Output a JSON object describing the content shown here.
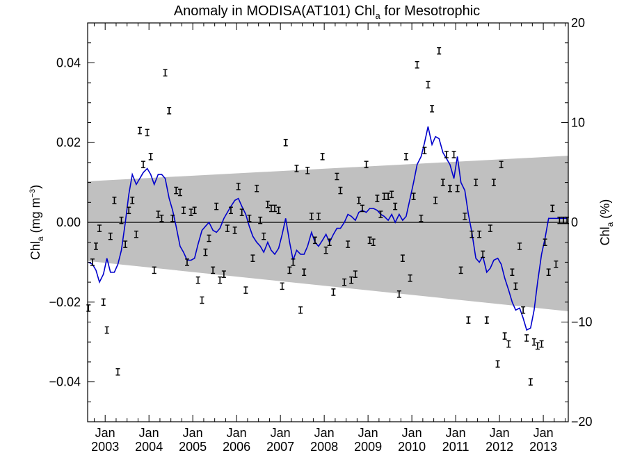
{
  "chart_data": {
    "type": "line",
    "title_main": "Anomaly in MODISA(AT101) Chl",
    "title_sub": "a",
    "title_tail": " for Mesotrophic",
    "ylabel_left": {
      "main": "Chl",
      "sub": "a",
      "unit_pre": " (mg m",
      "unit_sup": "−3",
      "unit_post": ")"
    },
    "ylabel_right": {
      "main": "Chl",
      "sub": "a",
      "tail": " (%)"
    },
    "x_range": [
      2002.6,
      2013.57
    ],
    "y_left_range": [
      -0.05,
      0.05
    ],
    "y_right_range": [
      -20,
      20
    ],
    "x_ticks": [
      {
        "x": 2003.0,
        "line1": "Jan",
        "line2": "2003"
      },
      {
        "x": 2004.0,
        "line1": "Jan",
        "line2": "2004"
      },
      {
        "x": 2005.0,
        "line1": "Jan",
        "line2": "2005"
      },
      {
        "x": 2006.0,
        "line1": "Jan",
        "line2": "2006"
      },
      {
        "x": 2007.0,
        "line1": "Jan",
        "line2": "2007"
      },
      {
        "x": 2008.0,
        "line1": "Jan",
        "line2": "2008"
      },
      {
        "x": 2009.0,
        "line1": "Jan",
        "line2": "2009"
      },
      {
        "x": 2010.0,
        "line1": "Jan",
        "line2": "2010"
      },
      {
        "x": 2011.0,
        "line1": "Jan",
        "line2": "2011"
      },
      {
        "x": 2012.0,
        "line1": "Jan",
        "line2": "2012"
      },
      {
        "x": 2013.0,
        "line1": "Jan",
        "line2": "2013"
      }
    ],
    "y_left_ticks": [
      {
        "v": -0.04,
        "label": "−0.04"
      },
      {
        "v": -0.02,
        "label": "−0.02"
      },
      {
        "v": 0.0,
        "label": "0.00"
      },
      {
        "v": 0.02,
        "label": "0.02"
      },
      {
        "v": 0.04,
        "label": "0.04"
      }
    ],
    "y_right_ticks": [
      {
        "v": -20,
        "label": "−20"
      },
      {
        "v": -10,
        "label": "−10"
      },
      {
        "v": 0,
        "label": "0"
      },
      {
        "v": 10,
        "label": "10"
      },
      {
        "v": 20,
        "label": "20"
      }
    ],
    "grey_band": {
      "x": [
        2002.6,
        2013.57
      ],
      "upper": [
        0.0103,
        0.0167
      ],
      "lower": [
        -0.0097,
        -0.0223
      ],
      "color": "#c0c0c0"
    },
    "zero_line": 0.0,
    "series": [
      {
        "kind": "monthly_anomaly_points",
        "color": "#000000",
        "x": [
          2002.62,
          2002.71,
          2002.79,
          2002.87,
          2002.96,
          2003.04,
          2003.12,
          2003.21,
          2003.29,
          2003.37,
          2003.46,
          2003.54,
          2003.62,
          2003.71,
          2003.79,
          2003.87,
          2003.96,
          2004.04,
          2004.12,
          2004.21,
          2004.29,
          2004.37,
          2004.46,
          2004.54,
          2004.62,
          2004.71,
          2004.79,
          2004.87,
          2004.96,
          2005.04,
          2005.12,
          2005.21,
          2005.29,
          2005.37,
          2005.46,
          2005.54,
          2005.62,
          2005.71,
          2005.79,
          2005.87,
          2005.96,
          2006.04,
          2006.12,
          2006.21,
          2006.29,
          2006.37,
          2006.46,
          2006.54,
          2006.62,
          2006.71,
          2006.79,
          2006.87,
          2006.96,
          2007.04,
          2007.12,
          2007.21,
          2007.29,
          2007.37,
          2007.46,
          2007.54,
          2007.62,
          2007.71,
          2007.79,
          2007.87,
          2007.96,
          2008.04,
          2008.12,
          2008.21,
          2008.29,
          2008.37,
          2008.46,
          2008.54,
          2008.62,
          2008.71,
          2008.79,
          2008.87,
          2008.96,
          2009.04,
          2009.12,
          2009.21,
          2009.29,
          2009.37,
          2009.46,
          2009.54,
          2009.62,
          2009.71,
          2009.79,
          2009.87,
          2009.96,
          2010.04,
          2010.12,
          2010.21,
          2010.29,
          2010.37,
          2010.46,
          2010.54,
          2010.62,
          2010.71,
          2010.79,
          2010.87,
          2010.96,
          2011.04,
          2011.12,
          2011.21,
          2011.29,
          2011.37,
          2011.46,
          2011.54,
          2011.62,
          2011.71,
          2011.79,
          2011.87,
          2011.96,
          2012.04,
          2012.12,
          2012.21,
          2012.29,
          2012.37,
          2012.46,
          2012.54,
          2012.62,
          2012.71,
          2012.79,
          2012.87,
          2012.96,
          2013.04,
          2013.12,
          2013.21,
          2013.29,
          2013.37,
          2013.46,
          2013.54
        ],
        "y": [
          -0.0215,
          -0.01,
          -0.006,
          -0.0015,
          -0.02,
          -0.027,
          -0.0035,
          0.0055,
          -0.0375,
          0.0005,
          -0.0055,
          0.003,
          0.0055,
          -0.003,
          0.023,
          0.0145,
          0.0225,
          0.0165,
          -0.012,
          0.002,
          0.001,
          0.0375,
          0.028,
          0.001,
          0.008,
          0.0075,
          0.003,
          -0.01,
          0.0025,
          0.003,
          -0.0145,
          -0.0195,
          -0.0075,
          -0.004,
          -0.012,
          0.004,
          -0.0145,
          -0.013,
          -0.0015,
          0.003,
          -0.002,
          0.009,
          0.0025,
          -0.017,
          0.001,
          -0.009,
          0.0085,
          0.0005,
          -0.0035,
          0.0045,
          0.0035,
          0.0035,
          0.003,
          -0.016,
          0.02,
          -0.012,
          -0.01,
          0.0135,
          -0.022,
          -0.0125,
          0.013,
          0.0015,
          -0.0045,
          0.0015,
          0.0165,
          -0.007,
          -0.005,
          -0.0175,
          0.0115,
          0.008,
          -0.015,
          -0.0055,
          -0.0145,
          -0.013,
          0.0055,
          0.0035,
          0.0145,
          -0.0045,
          -0.005,
          0.006,
          0.002,
          0.0065,
          0.0065,
          0.007,
          0.004,
          -0.018,
          -0.009,
          0.0165,
          -0.014,
          0.0065,
          0.0395,
          0.001,
          0.018,
          0.0345,
          0.0285,
          0.0055,
          0.043,
          0.01,
          0.017,
          0.0085,
          0.017,
          0.0085,
          -0.012,
          0.0015,
          -0.0245,
          -0.003,
          0.01,
          -0.003,
          -0.008,
          -0.0245,
          -0.0015,
          0.01,
          -0.0355,
          0.0145,
          -0.0285,
          -0.0305,
          -0.0125,
          -0.016,
          -0.006,
          -0.022,
          -0.029,
          -0.04,
          -0.03,
          -0.031,
          -0.0305,
          -0.005,
          -0.0125,
          0.0035,
          -0.0105,
          0.0005,
          0.0005,
          0.0005
        ],
        "err": 0.0008
      },
      {
        "kind": "smoothed_line",
        "color": "#0000cc",
        "x": [
          2002.62,
          2002.71,
          2002.79,
          2002.87,
          2002.96,
          2003.04,
          2003.12,
          2003.21,
          2003.29,
          2003.37,
          2003.46,
          2003.54,
          2003.62,
          2003.71,
          2003.79,
          2003.87,
          2003.96,
          2004.04,
          2004.12,
          2004.21,
          2004.29,
          2004.37,
          2004.46,
          2004.54,
          2004.62,
          2004.71,
          2004.79,
          2004.87,
          2004.96,
          2005.04,
          2005.12,
          2005.21,
          2005.29,
          2005.37,
          2005.46,
          2005.54,
          2005.62,
          2005.71,
          2005.79,
          2005.87,
          2005.96,
          2006.04,
          2006.12,
          2006.21,
          2006.29,
          2006.37,
          2006.46,
          2006.54,
          2006.62,
          2006.71,
          2006.79,
          2006.87,
          2006.96,
          2007.04,
          2007.12,
          2007.21,
          2007.29,
          2007.37,
          2007.46,
          2007.54,
          2007.62,
          2007.71,
          2007.79,
          2007.87,
          2007.96,
          2008.04,
          2008.12,
          2008.21,
          2008.29,
          2008.37,
          2008.46,
          2008.54,
          2008.62,
          2008.71,
          2008.79,
          2008.87,
          2008.96,
          2009.04,
          2009.12,
          2009.21,
          2009.29,
          2009.37,
          2009.46,
          2009.54,
          2009.62,
          2009.71,
          2009.79,
          2009.87,
          2009.96,
          2010.04,
          2010.12,
          2010.21,
          2010.29,
          2010.37,
          2010.46,
          2010.54,
          2010.62,
          2010.71,
          2010.79,
          2010.87,
          2010.96,
          2011.04,
          2011.12,
          2011.21,
          2011.29,
          2011.37,
          2011.46,
          2011.54,
          2011.62,
          2011.71,
          2011.79,
          2011.87,
          2011.96,
          2012.04,
          2012.12,
          2012.21,
          2012.29,
          2012.37,
          2012.46,
          2012.54,
          2012.62,
          2012.71,
          2012.79,
          2012.87,
          2012.96,
          2013.04,
          2013.12,
          2013.21,
          2013.29,
          2013.37,
          2013.46,
          2013.54
        ],
        "y": [
          -0.01,
          -0.0105,
          -0.012,
          -0.015,
          -0.013,
          -0.009,
          -0.0125,
          -0.0125,
          -0.0105,
          -0.007,
          0.0,
          0.007,
          0.012,
          0.0095,
          0.011,
          0.0125,
          0.0135,
          0.012,
          0.0095,
          0.012,
          0.012,
          0.011,
          0.006,
          0.003,
          -0.001,
          -0.006,
          -0.0075,
          -0.0095,
          -0.0095,
          -0.009,
          -0.0055,
          -0.002,
          -0.001,
          0.0,
          -0.002,
          -0.0025,
          -0.0015,
          0.001,
          0.0025,
          0.004,
          0.0055,
          0.006,
          0.004,
          0.002,
          -0.001,
          -0.0035,
          -0.005,
          -0.006,
          -0.0075,
          -0.005,
          -0.007,
          -0.008,
          -0.0065,
          -0.003,
          0.001,
          -0.005,
          -0.0095,
          -0.007,
          -0.008,
          -0.008,
          -0.006,
          -0.0025,
          -0.005,
          -0.006,
          -0.0045,
          -0.003,
          -0.005,
          -0.003,
          -0.0015,
          -0.0015,
          0.0,
          0.002,
          0.0015,
          0.0005,
          0.0025,
          0.003,
          0.0025,
          0.0035,
          0.0035,
          0.003,
          0.002,
          0.0015,
          0.0005,
          0.002,
          0.0,
          0.002,
          0.0005,
          0.0015,
          0.006,
          0.01,
          0.0145,
          0.0165,
          0.02,
          0.024,
          0.0195,
          0.0215,
          0.021,
          0.0175,
          0.016,
          0.0145,
          0.011,
          0.0165,
          0.01,
          0.008,
          0.002,
          -0.0025,
          -0.009,
          -0.01,
          -0.0085,
          -0.0125,
          -0.0115,
          -0.0095,
          -0.009,
          -0.0105,
          -0.014,
          -0.017,
          -0.02,
          -0.022,
          -0.0215,
          -0.024,
          -0.027,
          -0.0265,
          -0.022,
          -0.015,
          -0.008,
          -0.004,
          0.001,
          0.001,
          0.001,
          0.001,
          0.001,
          0.001
        ]
      }
    ]
  }
}
